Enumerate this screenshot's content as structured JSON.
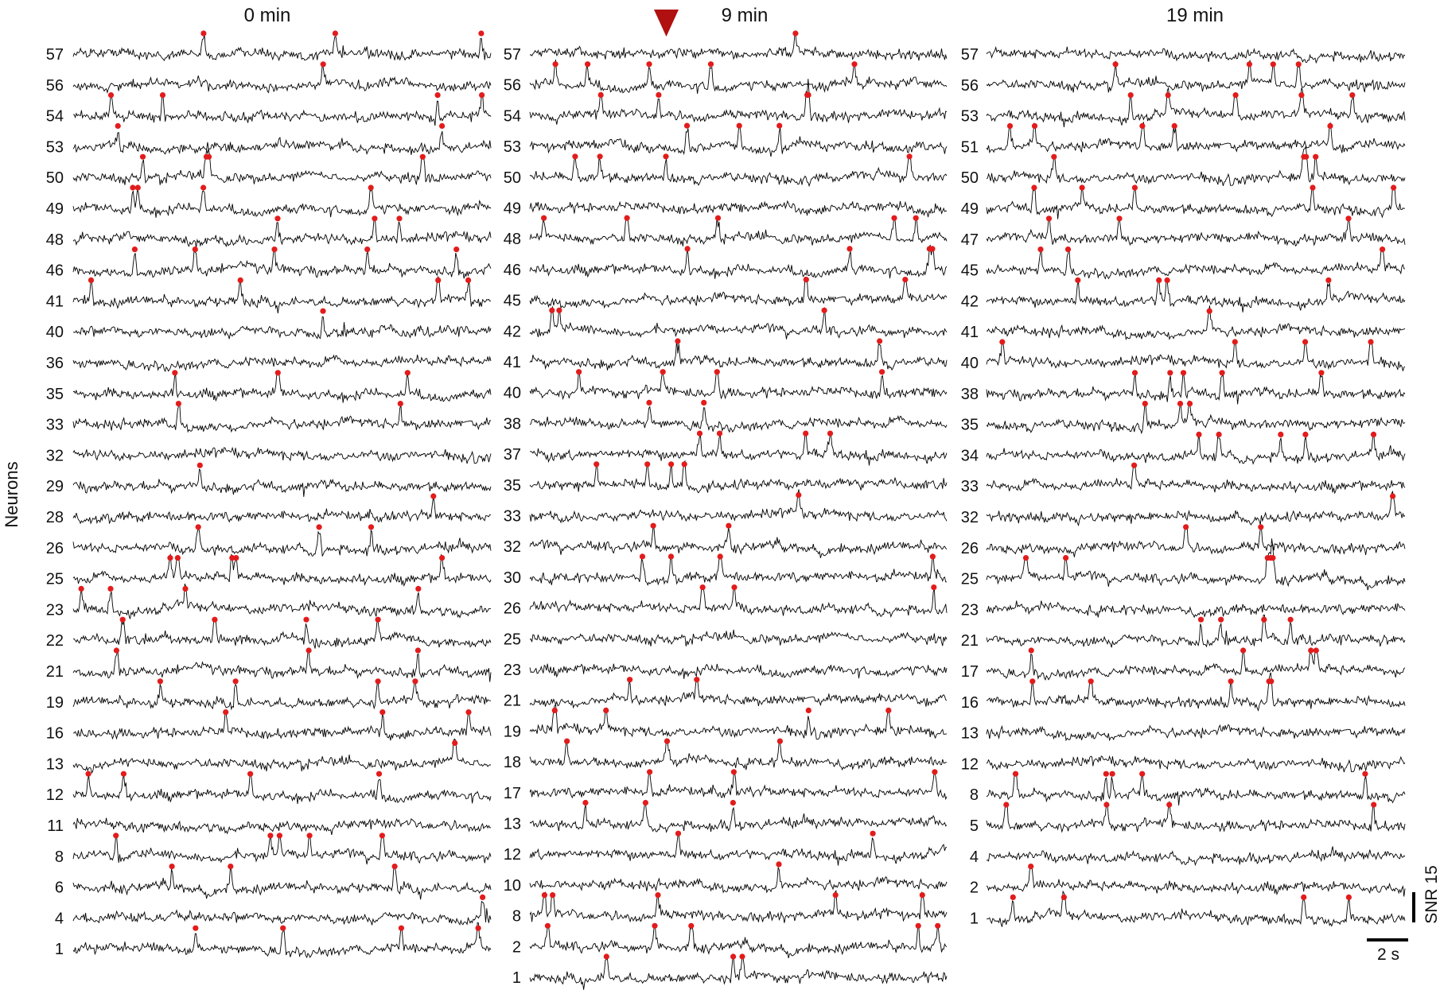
{
  "figure": {
    "ylabel": "Neurons",
    "scale_bar_time": "2 s",
    "scale_bar_snr": "SNR 15",
    "colors": {
      "trace": "#000000",
      "spike": "#e21c1c",
      "stimulus_marker": "#b01010",
      "text": "#111111"
    }
  },
  "chart_data": [
    {
      "type": "line",
      "title": "0 min",
      "neurons": [
        "57",
        "56",
        "54",
        "53",
        "50",
        "49",
        "48",
        "46",
        "41",
        "40",
        "36",
        "35",
        "33",
        "32",
        "29",
        "28",
        "26",
        "25",
        "23",
        "22",
        "21",
        "19",
        "16",
        "13",
        "12",
        "11",
        "8",
        "6",
        "4",
        "1"
      ],
      "x_unit": "s",
      "duration_approx_s": 12,
      "spike_marker": "red dot"
    },
    {
      "type": "line",
      "title": "9 min",
      "stimulus_marker": "red downward triangle",
      "neurons": [
        "57",
        "56",
        "54",
        "53",
        "50",
        "49",
        "48",
        "46",
        "45",
        "42",
        "41",
        "40",
        "38",
        "37",
        "35",
        "33",
        "32",
        "30",
        "26",
        "25",
        "23",
        "21",
        "19",
        "18",
        "17",
        "13",
        "12",
        "10",
        "8",
        "2",
        "1"
      ],
      "x_unit": "s",
      "duration_approx_s": 12,
      "spike_marker": "red dot"
    },
    {
      "type": "line",
      "title": "19 min",
      "neurons": [
        "57",
        "56",
        "53",
        "51",
        "50",
        "49",
        "47",
        "45",
        "42",
        "41",
        "40",
        "38",
        "35",
        "34",
        "33",
        "32",
        "26",
        "25",
        "23",
        "21",
        "17",
        "16",
        "13",
        "12",
        "8",
        "5",
        "4",
        "2",
        "1"
      ],
      "x_unit": "s",
      "duration_approx_s": 12,
      "spike_marker": "red dot"
    }
  ]
}
